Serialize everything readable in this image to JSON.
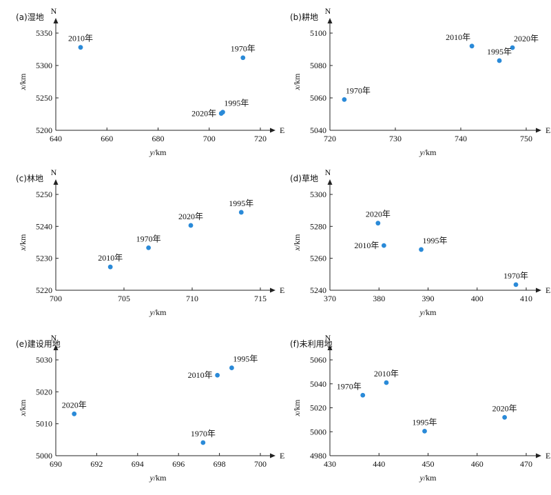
{
  "chart_data": [
    {
      "type": "scatter",
      "title": "(a)湿地",
      "north_label": "N",
      "east_label": "E",
      "xlabel_var": "y",
      "xlabel_unit": "/km",
      "ylabel_var": "x",
      "ylabel_unit": "/km",
      "xlim": [
        640,
        720
      ],
      "ylim": [
        5200,
        5350
      ],
      "xticks": [
        640,
        660,
        680,
        700,
        720
      ],
      "yticks": [
        5200,
        5250,
        5300,
        5350
      ],
      "point_color": "#2a8ad8",
      "points": [
        {
          "label": "2010年",
          "x": 649.7,
          "y": 5328,
          "label_pos": "above"
        },
        {
          "label": "1970年",
          "x": 713.2,
          "y": 5312,
          "label_pos": "above"
        },
        {
          "label": "1995年",
          "x": 705.3,
          "y": 5228,
          "label_pos": "above-right"
        },
        {
          "label": "2020年",
          "x": 704.7,
          "y": 5226,
          "label_pos": "left"
        }
      ]
    },
    {
      "type": "scatter",
      "title": "(b)耕地",
      "north_label": "N",
      "east_label": "E",
      "xlabel_var": "y",
      "xlabel_unit": "/km",
      "ylabel_var": "x",
      "ylabel_unit": "/km",
      "xlim": [
        720,
        750
      ],
      "ylim": [
        5040,
        5100
      ],
      "xticks": [
        720,
        730,
        740,
        750
      ],
      "yticks": [
        5040,
        5060,
        5080,
        5100
      ],
      "point_color": "#2a8ad8",
      "points": [
        {
          "label": "2010年",
          "x": 741.7,
          "y": 5092,
          "label_pos": "above-left"
        },
        {
          "label": "2020年",
          "x": 747.9,
          "y": 5091,
          "label_pos": "above-right"
        },
        {
          "label": "1995年",
          "x": 745.9,
          "y": 5083,
          "label_pos": "above"
        },
        {
          "label": "1970年",
          "x": 722.2,
          "y": 5059,
          "label_pos": "above-right"
        }
      ]
    },
    {
      "type": "scatter",
      "title": "(c)林地",
      "north_label": "N",
      "east_label": "E",
      "xlabel_var": "y",
      "xlabel_unit": "/km",
      "ylabel_var": "x",
      "ylabel_unit": "/km",
      "xlim": [
        700,
        715
      ],
      "ylim": [
        5220,
        5250
      ],
      "xticks": [
        700,
        705,
        710,
        715
      ],
      "yticks": [
        5220,
        5230,
        5240,
        5250
      ],
      "point_color": "#2a8ad8",
      "points": [
        {
          "label": "2010年",
          "x": 704.0,
          "y": 5227.3,
          "label_pos": "above"
        },
        {
          "label": "1970年",
          "x": 706.8,
          "y": 5233.3,
          "label_pos": "above"
        },
        {
          "label": "2020年",
          "x": 709.9,
          "y": 5240.3,
          "label_pos": "above"
        },
        {
          "label": "1995年",
          "x": 713.6,
          "y": 5244.4,
          "label_pos": "above"
        }
      ]
    },
    {
      "type": "scatter",
      "title": "(d)草地",
      "north_label": "N",
      "east_label": "E",
      "xlabel_var": "y",
      "xlabel_unit": "/km",
      "ylabel_var": "x",
      "ylabel_unit": "/km",
      "xlim": [
        370,
        410
      ],
      "ylim": [
        5240,
        5300
      ],
      "xticks": [
        370,
        380,
        390,
        400,
        410
      ],
      "yticks": [
        5240,
        5260,
        5280,
        5300
      ],
      "point_color": "#2a8ad8",
      "points": [
        {
          "label": "2020年",
          "x": 379.8,
          "y": 5282,
          "label_pos": "above"
        },
        {
          "label": "2010年",
          "x": 381.0,
          "y": 5268,
          "label_pos": "left"
        },
        {
          "label": "1995年",
          "x": 388.6,
          "y": 5265.5,
          "label_pos": "above-right"
        },
        {
          "label": "1970年",
          "x": 407.9,
          "y": 5243.5,
          "label_pos": "above"
        }
      ]
    },
    {
      "type": "scatter",
      "title": "(e)建设用地",
      "north_label": "N",
      "east_label": "E",
      "xlabel_var": "y",
      "xlabel_unit": "/km",
      "ylabel_var": "x",
      "ylabel_unit": "/km",
      "xlim": [
        690,
        700
      ],
      "ylim": [
        5000,
        5030
      ],
      "xticks": [
        690,
        692,
        694,
        696,
        698,
        700
      ],
      "yticks": [
        5000,
        5010,
        5020,
        5030
      ],
      "point_color": "#2a8ad8",
      "points": [
        {
          "label": "2010年",
          "x": 697.9,
          "y": 5025.2,
          "label_pos": "left"
        },
        {
          "label": "1995年",
          "x": 698.6,
          "y": 5027.5,
          "label_pos": "above-right"
        },
        {
          "label": "2020年",
          "x": 690.9,
          "y": 5013.1,
          "label_pos": "above"
        },
        {
          "label": "1970年",
          "x": 697.2,
          "y": 5004.1,
          "label_pos": "above"
        }
      ]
    },
    {
      "type": "scatter",
      "title": "(f)未利用地",
      "north_label": "N",
      "east_label": "E",
      "xlabel_var": "y",
      "xlabel_unit": "/km",
      "ylabel_var": "x",
      "ylabel_unit": "/km",
      "xlim": [
        430,
        470
      ],
      "ylim": [
        4980,
        5060
      ],
      "xticks": [
        430,
        440,
        450,
        460,
        470
      ],
      "yticks": [
        4980,
        5000,
        5020,
        5040,
        5060
      ],
      "point_color": "#2a8ad8",
      "points": [
        {
          "label": "2010年",
          "x": 441.5,
          "y": 5041,
          "label_pos": "above"
        },
        {
          "label": "1970年",
          "x": 436.7,
          "y": 5030.5,
          "label_pos": "above-left"
        },
        {
          "label": "1995年",
          "x": 449.3,
          "y": 5000.5,
          "label_pos": "above"
        },
        {
          "label": "2020年",
          "x": 465.6,
          "y": 5012,
          "label_pos": "above"
        }
      ]
    }
  ]
}
